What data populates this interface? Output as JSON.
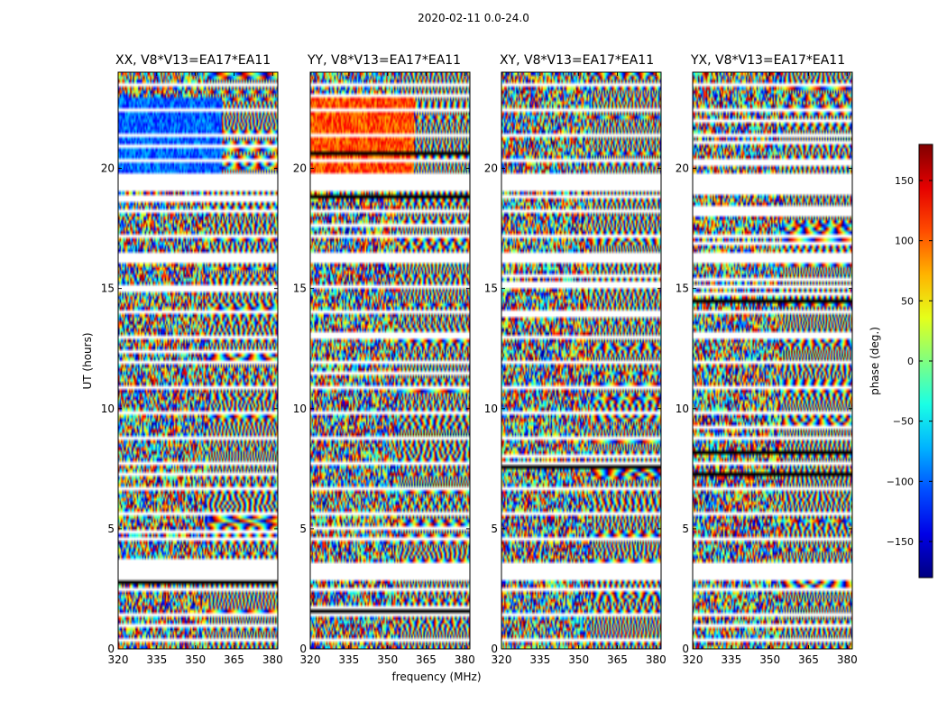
{
  "figure": {
    "suptitle": "2020-02-11 0.0-24.0"
  },
  "chart_data": {
    "type": "heatmap",
    "xlabel": "frequency (MHz)",
    "ylabel": "UT (hours)",
    "xlim": [
      320,
      382
    ],
    "ylim": [
      0,
      24
    ],
    "xticks": [
      320,
      335,
      350,
      365,
      380
    ],
    "yticks": [
      0,
      5,
      10,
      15,
      20
    ],
    "panels": [
      {
        "title": "XX, V8*V13=EA17*EA11"
      },
      {
        "title": "YY, V8*V13=EA17*EA11"
      },
      {
        "title": "XY, V8*V13=EA17*EA11"
      },
      {
        "title": "YX, V8*V13=EA17*EA11"
      }
    ],
    "colorbar": {
      "label": "phase (deg.)",
      "colormap": "jet",
      "range": [
        -180,
        180
      ],
      "ticks": [
        150,
        100,
        50,
        0,
        -50,
        -100,
        -150
      ]
    },
    "data_gaps_ut": [
      [
        2.8,
        3.5
      ],
      [
        19.0,
        19.8
      ],
      [
        16.2,
        16.5
      ]
    ]
  }
}
